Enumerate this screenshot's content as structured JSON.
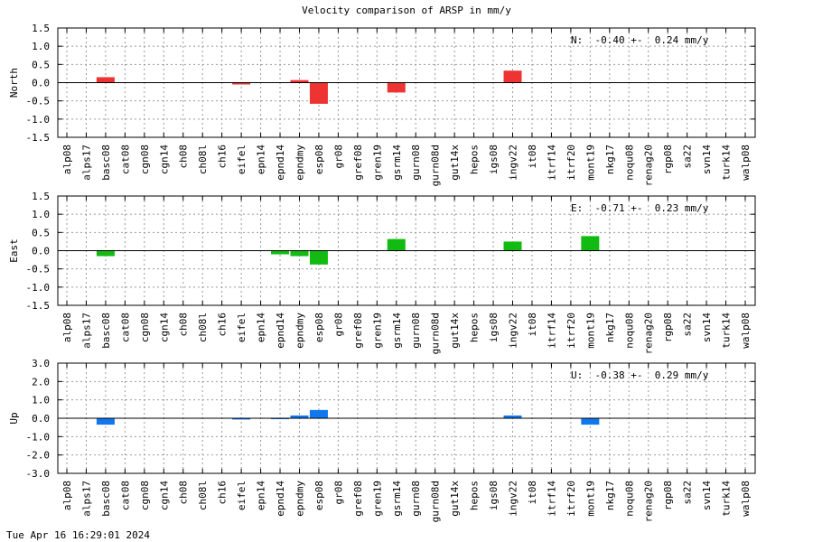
{
  "title": "Velocity comparison of ARSP in mm/y",
  "footer": "Tue Apr 16 16:29:01 2024",
  "chart_data": {
    "type": "bar",
    "categories": [
      "alp08",
      "alps17",
      "basc08",
      "cat08",
      "cgn08",
      "cgn14",
      "ch08",
      "ch08l",
      "ch16",
      "eifel",
      "epn14",
      "epnd14",
      "epndmy",
      "esp08",
      "gr08",
      "gref08",
      "gren19",
      "gsrm14",
      "gurn08",
      "gurn08d",
      "gut14x",
      "hepos",
      "igs08",
      "ingv22",
      "it08",
      "itrf14",
      "itrf20",
      "mont19",
      "nkg17",
      "noqu08",
      "renag20",
      "rgp08",
      "sa22",
      "svn14",
      "turk14",
      "walp08"
    ],
    "panels": [
      {
        "ylabel": "North",
        "ylim": [
          -1.5,
          1.5
        ],
        "yticks": [
          "1.5",
          "1.0",
          "0.5",
          "0.0",
          "-0.5",
          "-1.0",
          "-1.5"
        ],
        "tick_values": [
          1.5,
          1.0,
          0.5,
          0.0,
          -0.5,
          -1.0,
          -1.5
        ],
        "color": "#ee3333",
        "annotation": "N:  -0.40 +-  0.24 mm/y",
        "values": [
          0,
          0,
          0.15,
          0,
          0,
          0,
          0,
          0,
          0,
          -0.05,
          0,
          0,
          0.07,
          -0.58,
          0,
          0,
          0,
          -0.27,
          0,
          0,
          0,
          0,
          0,
          0.33,
          0,
          0,
          0,
          0,
          0,
          0,
          0,
          0,
          0,
          0,
          0,
          0
        ]
      },
      {
        "ylabel": "East",
        "ylim": [
          -1.5,
          1.5
        ],
        "yticks": [
          "1.5",
          "1.0",
          "0.5",
          "0.0",
          "-0.5",
          "-1.0",
          "-1.5"
        ],
        "tick_values": [
          1.5,
          1.0,
          0.5,
          0.0,
          -0.5,
          -1.0,
          -1.5
        ],
        "color": "#11bb11",
        "annotation": "E:  -0.71 +-  0.23 mm/y",
        "values": [
          0,
          0,
          -0.15,
          0,
          0,
          0,
          0,
          0,
          0,
          0,
          0,
          -0.1,
          -0.15,
          -0.38,
          0,
          0,
          0,
          0.32,
          0,
          0,
          0,
          0,
          0,
          0.25,
          0,
          0,
          0,
          0.4,
          0,
          0,
          0,
          0,
          0,
          0,
          0,
          0
        ]
      },
      {
        "ylabel": "Up",
        "ylim": [
          -3.0,
          3.0
        ],
        "yticks": [
          "3.0",
          "2.0",
          "1.0",
          "0.0",
          "-1.0",
          "-2.0",
          "-3.0"
        ],
        "tick_values": [
          3.0,
          2.0,
          1.0,
          0.0,
          -1.0,
          -2.0,
          -3.0
        ],
        "color": "#1177ee",
        "annotation": "U:  -0.38 +-  0.29 mm/y",
        "values": [
          0,
          0,
          -0.35,
          0,
          0,
          0,
          0,
          0,
          0,
          -0.07,
          0,
          -0.05,
          0.15,
          0.45,
          0,
          0,
          0,
          0,
          0,
          0,
          0,
          0,
          0,
          0.15,
          0,
          0,
          0,
          -0.35,
          0,
          0,
          0,
          0,
          0,
          0,
          0,
          0
        ]
      }
    ]
  }
}
